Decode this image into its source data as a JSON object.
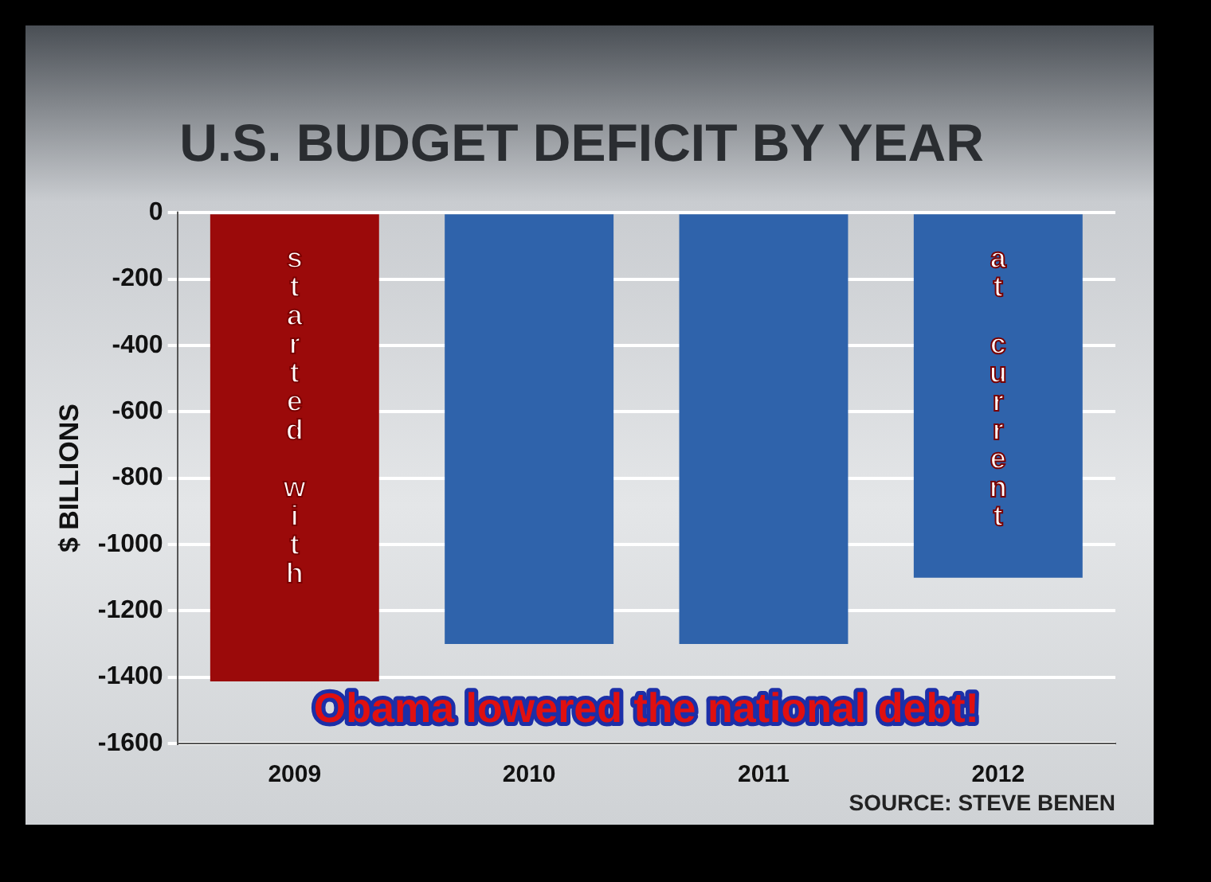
{
  "chart_data": {
    "type": "bar",
    "title": "U.S. BUDGET DEFICIT BY YEAR",
    "ylabel": "$ BILLIONS",
    "categories": [
      "2009",
      "2010",
      "2011",
      "2012"
    ],
    "values": [
      -1413,
      -1300,
      -1300,
      -1100
    ],
    "colors": [
      "#9b0a0a",
      "#2f63ab",
      "#2f63ab",
      "#2f63ab"
    ],
    "ylim": [
      -1600,
      0
    ],
    "yticks": [
      -1600,
      -1400,
      -1200,
      -1000,
      -800,
      -600,
      -400,
      -200,
      0
    ],
    "grid": "y",
    "annotations": [
      {
        "text": "started with",
        "x": "2009",
        "y": 0
      },
      {
        "text": "at current",
        "x": "2012",
        "y": 0
      },
      "Obama lowered the national debt!",
      "SOURCE: STEVE BENEN"
    ]
  }
}
